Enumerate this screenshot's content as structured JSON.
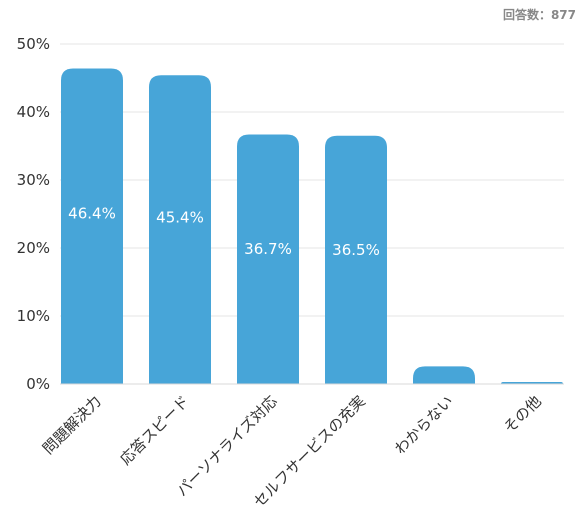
{
  "note": "回答数：877",
  "chart_data": {
    "type": "bar",
    "categories": [
      "問題解決力",
      "応答スピード",
      "パーソナライズ対応",
      "セルフサービスの充実",
      "わからない",
      "その他"
    ],
    "values": [
      46.4,
      45.4,
      36.7,
      36.5,
      2.6,
      0.3
    ],
    "data_labels": [
      "46.4%",
      "45.4%",
      "36.7%",
      "36.5%",
      "",
      ""
    ],
    "y_ticks": [
      {
        "value": 0,
        "label": "0%"
      },
      {
        "value": 10,
        "label": "10%"
      },
      {
        "value": 20,
        "label": "20%"
      },
      {
        "value": 30,
        "label": "30%"
      },
      {
        "value": 40,
        "label": "40%"
      },
      {
        "value": 50,
        "label": "50%"
      }
    ],
    "ylim": [
      0,
      50
    ],
    "grid": true,
    "colors": {
      "bar": "#47a5d8",
      "grid": "#e6e6e6",
      "axis_text": "#333333",
      "data_label": "#ffffff"
    }
  }
}
